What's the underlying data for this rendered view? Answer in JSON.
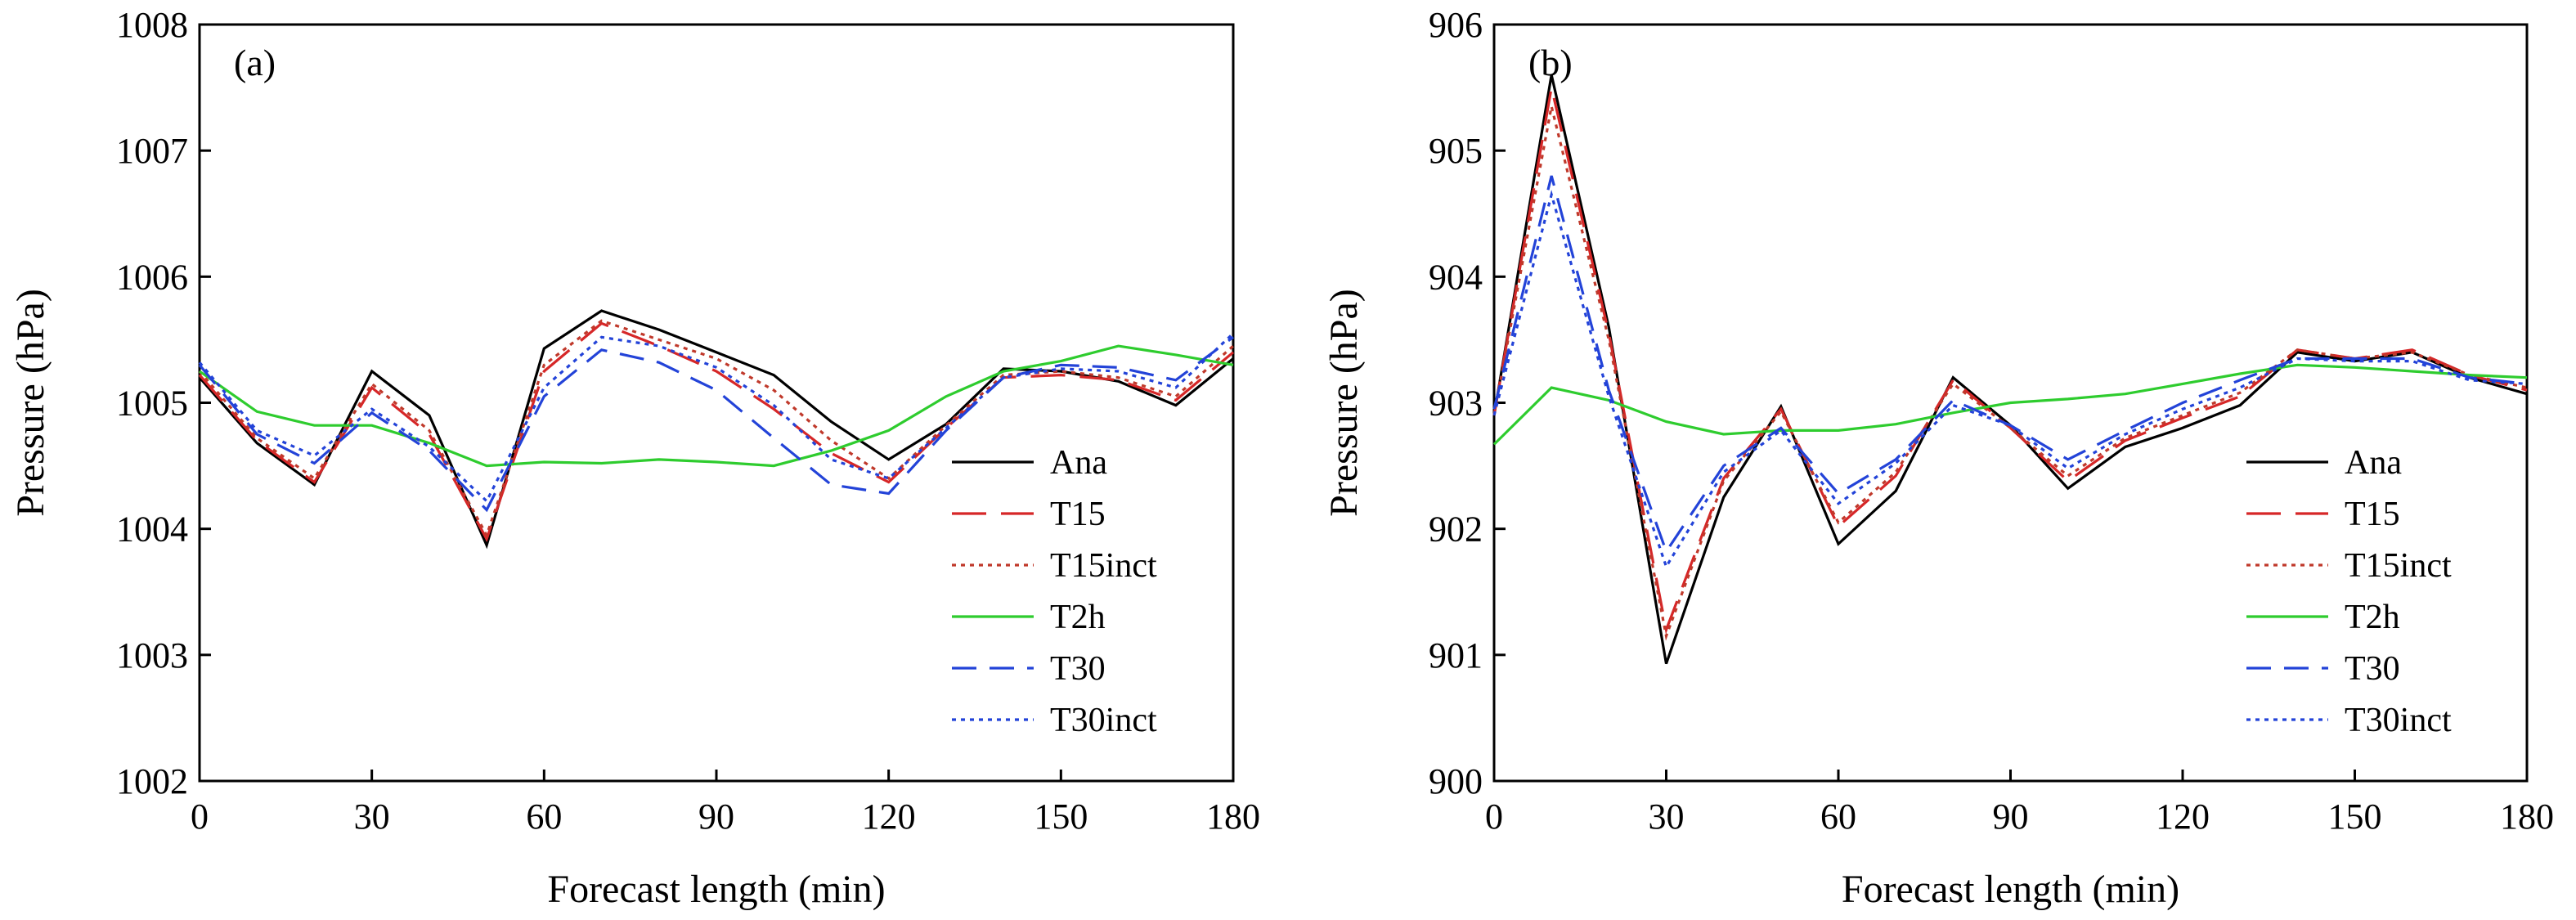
{
  "chart_data": [
    {
      "type": "line",
      "panel_label": "(a)",
      "xlabel": "Forecast length (min)",
      "ylabel": "Pressure (hPa)",
      "xlim": [
        0,
        180
      ],
      "ylim": [
        1002,
        1008
      ],
      "xticks": [
        0,
        30,
        60,
        90,
        120,
        150,
        180
      ],
      "yticks": [
        1002,
        1003,
        1004,
        1005,
        1006,
        1007,
        1008
      ],
      "legend_position": "bottom-right",
      "x": [
        0,
        10,
        20,
        30,
        40,
        50,
        60,
        70,
        80,
        90,
        100,
        110,
        120,
        130,
        140,
        150,
        160,
        170,
        180
      ],
      "series": [
        {
          "name": "Ana",
          "color": "#000000",
          "dash": "solid",
          "values": [
            1005.2,
            1004.68,
            1004.35,
            1005.25,
            1004.9,
            1003.87,
            1005.43,
            1005.73,
            1005.58,
            1005.4,
            1005.22,
            1004.85,
            1004.55,
            1004.83,
            1005.27,
            1005.25,
            1005.17,
            1004.98,
            1005.35
          ]
        },
        {
          "name": "T15",
          "color": "#d62728",
          "dash": "long-dash",
          "values": [
            1005.22,
            1004.7,
            1004.37,
            1005.12,
            1004.75,
            1003.92,
            1005.25,
            1005.63,
            1005.45,
            1005.25,
            1004.95,
            1004.6,
            1004.37,
            1004.8,
            1005.2,
            1005.22,
            1005.18,
            1005.02,
            1005.4
          ]
        },
        {
          "name": "T15inct",
          "color": "#c0392b",
          "dash": "dotted",
          "values": [
            1005.25,
            1004.72,
            1004.4,
            1005.15,
            1004.78,
            1003.95,
            1005.3,
            1005.65,
            1005.5,
            1005.35,
            1005.1,
            1004.7,
            1004.4,
            1004.82,
            1005.22,
            1005.25,
            1005.2,
            1005.05,
            1005.45
          ]
        },
        {
          "name": "T2h",
          "color": "#2ecc2e",
          "dash": "solid",
          "values": [
            1005.25,
            1004.93,
            1004.82,
            1004.82,
            1004.68,
            1004.5,
            1004.53,
            1004.52,
            1004.55,
            1004.53,
            1004.5,
            1004.62,
            1004.78,
            1005.05,
            1005.25,
            1005.33,
            1005.45,
            1005.38,
            1005.3
          ]
        },
        {
          "name": "T30",
          "color": "#2343d8",
          "dash": "dash",
          "values": [
            1005.3,
            1004.75,
            1004.52,
            1004.92,
            1004.62,
            1004.15,
            1005.05,
            1005.42,
            1005.32,
            1005.1,
            1004.72,
            1004.35,
            1004.28,
            1004.78,
            1005.2,
            1005.3,
            1005.28,
            1005.18,
            1005.52
          ]
        },
        {
          "name": "T30inct",
          "color": "#2343d8",
          "dash": "dotted",
          "values": [
            1005.32,
            1004.78,
            1004.58,
            1004.95,
            1004.65,
            1004.22,
            1005.12,
            1005.52,
            1005.45,
            1005.28,
            1004.98,
            1004.55,
            1004.4,
            1004.8,
            1005.2,
            1005.27,
            1005.25,
            1005.12,
            1005.55
          ]
        }
      ]
    },
    {
      "type": "line",
      "panel_label": "(b)",
      "xlabel": "Forecast length (min)",
      "ylabel": "Pressure (hPa)",
      "xlim": [
        0,
        180
      ],
      "ylim": [
        900,
        906
      ],
      "xticks": [
        0,
        30,
        60,
        90,
        120,
        150,
        180
      ],
      "yticks": [
        900,
        901,
        902,
        903,
        904,
        905,
        906
      ],
      "legend_position": "bottom-right",
      "x": [
        0,
        10,
        20,
        30,
        40,
        50,
        60,
        70,
        80,
        90,
        100,
        110,
        120,
        130,
        140,
        150,
        160,
        170,
        180
      ],
      "series": [
        {
          "name": "Ana",
          "color": "#000000",
          "dash": "solid",
          "values": [
            902.9,
            905.6,
            903.6,
            900.93,
            902.25,
            902.97,
            901.88,
            902.3,
            903.2,
            902.82,
            902.32,
            902.65,
            902.8,
            902.98,
            903.4,
            903.33,
            903.4,
            903.2,
            903.07
          ]
        },
        {
          "name": "T15",
          "color": "#d62728",
          "dash": "long-dash",
          "values": [
            902.9,
            905.5,
            903.55,
            901.2,
            902.4,
            902.95,
            902.02,
            902.42,
            903.18,
            902.8,
            902.38,
            902.7,
            902.88,
            903.05,
            903.42,
            903.35,
            903.42,
            903.22,
            903.1
          ]
        },
        {
          "name": "T15inct",
          "color": "#c0392b",
          "dash": "dotted",
          "values": [
            902.9,
            905.35,
            903.5,
            901.15,
            902.38,
            902.93,
            902.05,
            902.45,
            903.15,
            902.8,
            902.42,
            902.72,
            902.9,
            903.08,
            903.42,
            903.35,
            903.4,
            903.22,
            903.12
          ]
        },
        {
          "name": "T2h",
          "color": "#2ecc2e",
          "dash": "solid",
          "values": [
            902.67,
            903.12,
            903.02,
            902.85,
            902.75,
            902.78,
            902.78,
            902.83,
            902.92,
            903.0,
            903.03,
            903.07,
            903.15,
            903.23,
            903.3,
            903.28,
            903.25,
            903.22,
            903.2
          ]
        },
        {
          "name": "T30",
          "color": "#2343d8",
          "dash": "dash",
          "values": [
            902.95,
            904.8,
            903.1,
            901.82,
            902.5,
            902.8,
            902.28,
            902.55,
            903.02,
            902.82,
            902.55,
            902.78,
            903.0,
            903.18,
            903.35,
            903.35,
            903.35,
            903.2,
            903.15
          ]
        },
        {
          "name": "T30inct",
          "color": "#2343d8",
          "dash": "dotted",
          "values": [
            902.9,
            904.65,
            903.05,
            901.7,
            902.45,
            902.78,
            902.2,
            902.52,
            902.98,
            902.82,
            902.48,
            902.75,
            902.95,
            903.12,
            903.35,
            903.33,
            903.33,
            903.18,
            903.15
          ]
        }
      ]
    }
  ]
}
